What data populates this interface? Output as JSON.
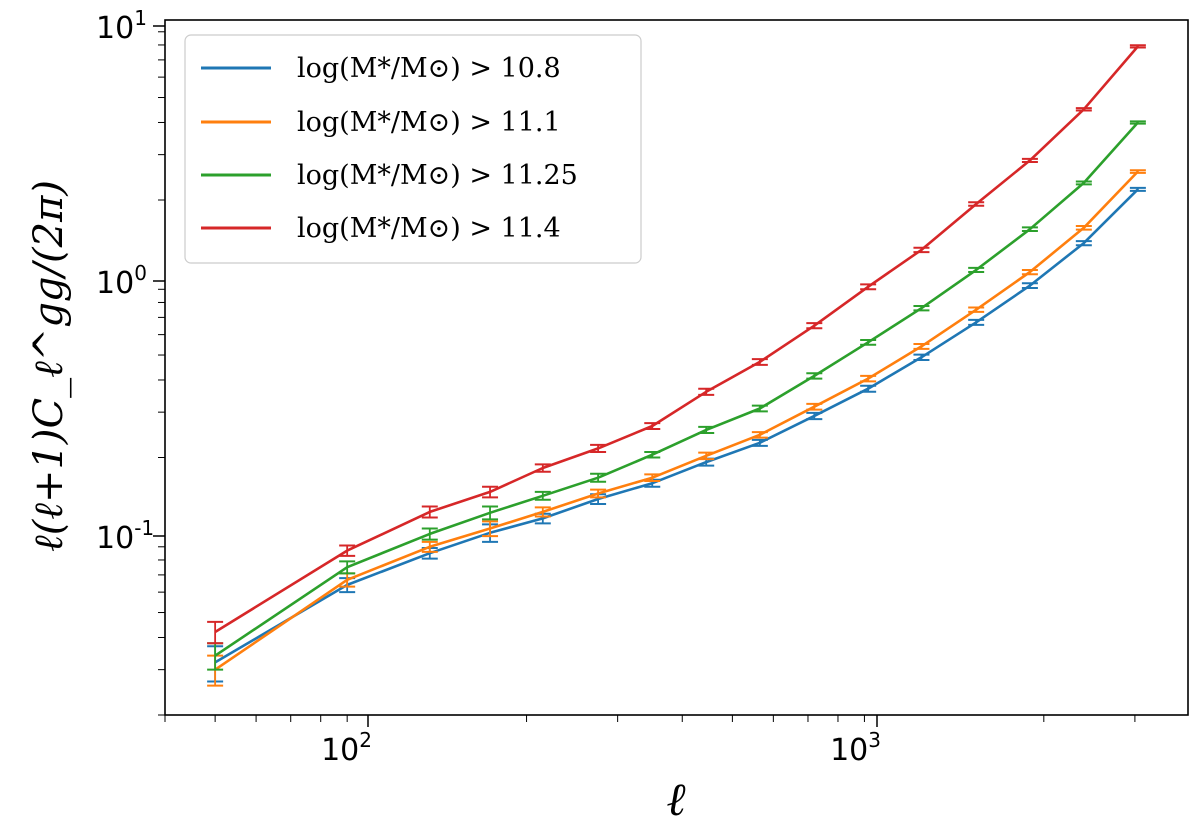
{
  "chart_data": {
    "type": "line",
    "xscale": "log",
    "yscale": "log",
    "xlim": [
      40,
      3800
    ],
    "ylim": [
      0.02,
      10
    ],
    "xlabel": "ℓ",
    "ylabel": "ℓ(ℓ+1)C_ℓ^gg/(2π)",
    "x_ticks": [
      {
        "base": "10",
        "exp": "2"
      },
      {
        "base": "10",
        "exp": "3"
      }
    ],
    "y_ticks": [
      {
        "base": "10",
        "exp": "-1"
      },
      {
        "base": "10",
        "exp": "0"
      },
      {
        "base": "10",
        "exp": "1"
      }
    ],
    "legend_position": "top-left",
    "x": [
      50,
      90,
      130,
      170,
      215,
      275,
      350,
      445,
      565,
      720,
      915,
      1160,
      1480,
      1880,
      2390,
      3040
    ],
    "series": [
      {
        "name": "log(M*/M⊙) > 10.8",
        "color": "#1f77b4",
        "values": [
          0.032,
          0.064,
          0.085,
          0.102,
          0.116,
          0.138,
          0.159,
          0.192,
          0.228,
          0.29,
          0.37,
          0.49,
          0.67,
          0.93,
          1.36,
          2.2
        ],
        "errors": [
          0.005,
          0.004,
          0.004,
          0.008,
          0.005,
          0.006,
          0.005,
          0.006,
          0.006,
          0.008,
          0.01,
          0.012,
          0.015,
          0.02,
          0.025,
          0.03
        ]
      },
      {
        "name": "log(M*/M⊙) > 11.1",
        "color": "#ff7f0e",
        "values": [
          0.03,
          0.067,
          0.09,
          0.106,
          0.123,
          0.145,
          0.167,
          0.203,
          0.245,
          0.315,
          0.405,
          0.54,
          0.75,
          1.05,
          1.56,
          2.58
        ],
        "errors": [
          0.004,
          0.004,
          0.004,
          0.007,
          0.005,
          0.005,
          0.005,
          0.006,
          0.006,
          0.008,
          0.01,
          0.012,
          0.015,
          0.02,
          0.025,
          0.03
        ]
      },
      {
        "name": "log(M*/M⊙) > 11.25",
        "color": "#2ca02c",
        "values": [
          0.034,
          0.075,
          0.101,
          0.122,
          0.142,
          0.167,
          0.205,
          0.256,
          0.31,
          0.415,
          0.56,
          0.76,
          1.07,
          1.54,
          2.33,
          4.0
        ],
        "errors": [
          0.004,
          0.004,
          0.005,
          0.007,
          0.005,
          0.006,
          0.005,
          0.007,
          0.008,
          0.01,
          0.012,
          0.015,
          0.02,
          0.025,
          0.03,
          0.04
        ]
      },
      {
        "name": "log(M*/M⊙) > 11.4",
        "color": "#d62728",
        "values": [
          0.042,
          0.087,
          0.123,
          0.147,
          0.182,
          0.217,
          0.265,
          0.36,
          0.47,
          0.65,
          0.92,
          1.28,
          1.93,
          2.85,
          4.5,
          7.9
        ],
        "errors": [
          0.004,
          0.004,
          0.006,
          0.007,
          0.006,
          0.007,
          0.007,
          0.01,
          0.012,
          0.015,
          0.02,
          0.025,
          0.03,
          0.04,
          0.05,
          0.08
        ]
      }
    ]
  }
}
